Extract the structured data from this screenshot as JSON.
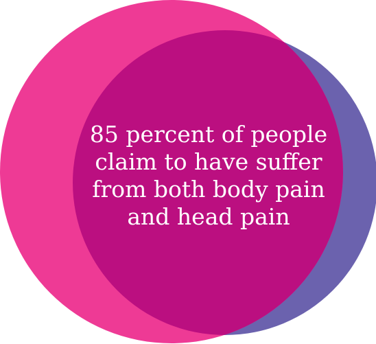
{
  "diagram": {
    "caption": "85 percent of people\nclaim to have suffer\nfrom both body pain\nand head pain",
    "colors": {
      "left_circle": "#EE3A95",
      "right_circle": "#6B62AE",
      "overlap": "#BB0F80",
      "text": "#FFFFFF",
      "background": "#FFFFFF"
    }
  }
}
